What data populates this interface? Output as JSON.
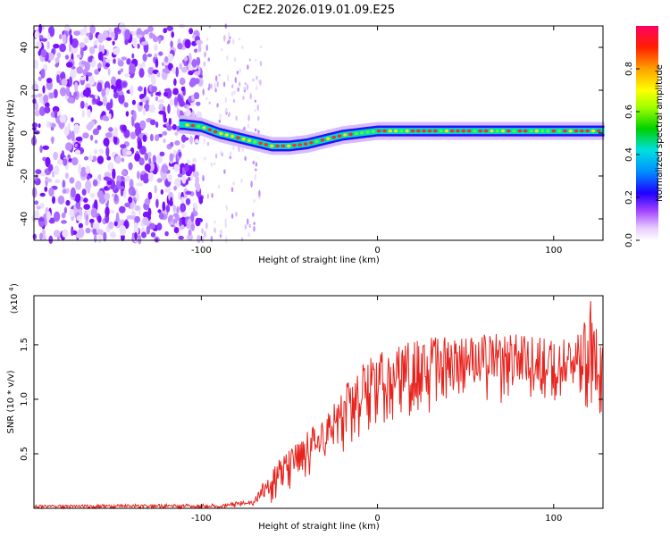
{
  "title": "C2E2.2026.019.01.09.E25",
  "chart_data": [
    {
      "type": "heatmap",
      "name": "spectrogram",
      "xlabel": "Height of straight line (km)",
      "ylabel": "Frequency (Hz)",
      "xlim": [
        -195,
        128
      ],
      "ylim": [
        -50,
        50
      ],
      "xticks": [
        -100,
        0,
        100
      ],
      "yticks": [
        -40,
        -20,
        0,
        20,
        40
      ],
      "ridge_track": [
        {
          "x": -110,
          "y": 4
        },
        {
          "x": -100,
          "y": 3
        },
        {
          "x": -90,
          "y": 0
        },
        {
          "x": -80,
          "y": -2
        },
        {
          "x": -70,
          "y": -4
        },
        {
          "x": -60,
          "y": -6
        },
        {
          "x": -50,
          "y": -6
        },
        {
          "x": -40,
          "y": -5
        },
        {
          "x": -30,
          "y": -3
        },
        {
          "x": -20,
          "y": -1
        },
        {
          "x": -10,
          "y": 0
        },
        {
          "x": 0,
          "y": 1
        },
        {
          "x": 10,
          "y": 1
        },
        {
          "x": 20,
          "y": 1
        },
        {
          "x": 40,
          "y": 1
        },
        {
          "x": 60,
          "y": 1
        },
        {
          "x": 80,
          "y": 1
        },
        {
          "x": 100,
          "y": 1
        },
        {
          "x": 128,
          "y": 1
        }
      ],
      "colorbar": {
        "label": "Normalized spectral amplitude",
        "range": [
          0,
          1
        ],
        "ticks": [
          "0.0",
          "0.2",
          "0.4",
          "0.6",
          "0.8"
        ]
      }
    },
    {
      "type": "line",
      "name": "snr",
      "xlabel": "Height of straight line (km)",
      "ylabel": "SNR (10 * v/v)",
      "scale_label": "(x10",
      "scale_exp": "4",
      "xlim": [
        -195,
        128
      ],
      "ylim": [
        0,
        1.95
      ],
      "xticks": [
        -100,
        0,
        100
      ],
      "yticks": [
        "0.5",
        "1.0",
        "1.5"
      ],
      "color": "#e8221c",
      "envelope": [
        {
          "x": -195,
          "low": 0.0,
          "high": 0.03
        },
        {
          "x": -90,
          "low": 0.0,
          "high": 0.04
        },
        {
          "x": -70,
          "low": 0.01,
          "high": 0.08
        },
        {
          "x": -60,
          "low": 0.05,
          "high": 0.4
        },
        {
          "x": -50,
          "low": 0.15,
          "high": 0.55
        },
        {
          "x": -40,
          "low": 0.25,
          "high": 0.7
        },
        {
          "x": -30,
          "low": 0.35,
          "high": 0.85
        },
        {
          "x": -20,
          "low": 0.5,
          "high": 1.1
        },
        {
          "x": -10,
          "low": 0.6,
          "high": 1.3
        },
        {
          "x": 0,
          "low": 0.75,
          "high": 1.45
        },
        {
          "x": 20,
          "low": 0.85,
          "high": 1.55
        },
        {
          "x": 40,
          "low": 0.9,
          "high": 1.6
        },
        {
          "x": 60,
          "low": 0.95,
          "high": 1.6
        },
        {
          "x": 80,
          "low": 0.95,
          "high": 1.6
        },
        {
          "x": 100,
          "low": 0.95,
          "high": 1.55
        },
        {
          "x": 115,
          "low": 0.9,
          "high": 1.6
        },
        {
          "x": 121,
          "low": 0.9,
          "high": 1.9
        },
        {
          "x": 128,
          "low": 0.8,
          "high": 1.5
        }
      ]
    }
  ]
}
